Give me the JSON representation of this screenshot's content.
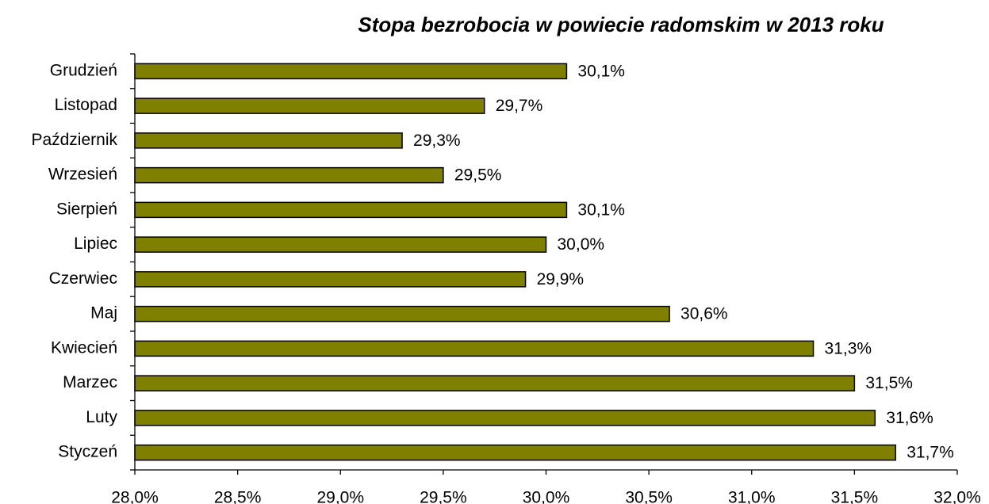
{
  "chart_data": {
    "type": "bar",
    "orientation": "horizontal",
    "title": "Stopa bezrobocia w powiecie radomskim w 2013 roku",
    "categories": [
      "Styczeń",
      "Luty",
      "Marzec",
      "Kwiecień",
      "Maj",
      "Czerwiec",
      "Lipiec",
      "Sierpień",
      "Wrzesień",
      "Październik",
      "Listopad",
      "Grudzień"
    ],
    "values": [
      31.7,
      31.6,
      31.5,
      31.3,
      30.6,
      29.9,
      30.0,
      30.1,
      29.5,
      29.3,
      29.7,
      30.1
    ],
    "value_labels": [
      "31,7%",
      "31,6%",
      "31,5%",
      "31,3%",
      "30,6%",
      "29,9%",
      "30,0%",
      "30,1%",
      "29,5%",
      "29,3%",
      "29,7%",
      "30,1%"
    ],
    "color": "#808000",
    "xlim": [
      28,
      32
    ],
    "xticks": [
      {
        "value": 28,
        "label": "28,0%"
      },
      {
        "value": 28.5,
        "label": "28,5%"
      },
      {
        "value": 29,
        "label": "29,0%"
      },
      {
        "value": 29.5,
        "label": "29,5%"
      },
      {
        "value": 30,
        "label": "30,0%"
      },
      {
        "value": 30.5,
        "label": "30,5%"
      },
      {
        "value": 31,
        "label": "31,0%"
      },
      {
        "value": 31.5,
        "label": "31,5%"
      },
      {
        "value": 32,
        "label": "32,0%"
      }
    ],
    "grid": false
  }
}
